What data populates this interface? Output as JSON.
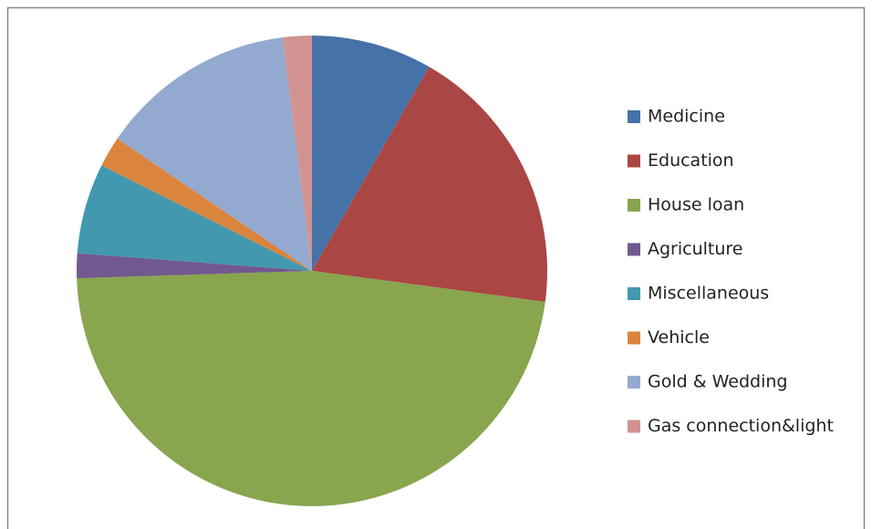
{
  "chart_data": {
    "type": "pie",
    "categories": [
      "Medicine",
      "Education",
      "House loan",
      "Agriculture",
      "Miscellaneous",
      "Vehicle",
      "Gold & Wedding",
      "Gas connection&light"
    ],
    "values": [
      8.3,
      18.8,
      47.4,
      1.7,
      6.2,
      2.1,
      13.5,
      2.0
    ],
    "colors": [
      "#4572a7",
      "#aa4643",
      "#89a54e",
      "#71588f",
      "#4198af",
      "#db843d",
      "#93a9cf",
      "#d19392"
    ],
    "legend": "right"
  }
}
